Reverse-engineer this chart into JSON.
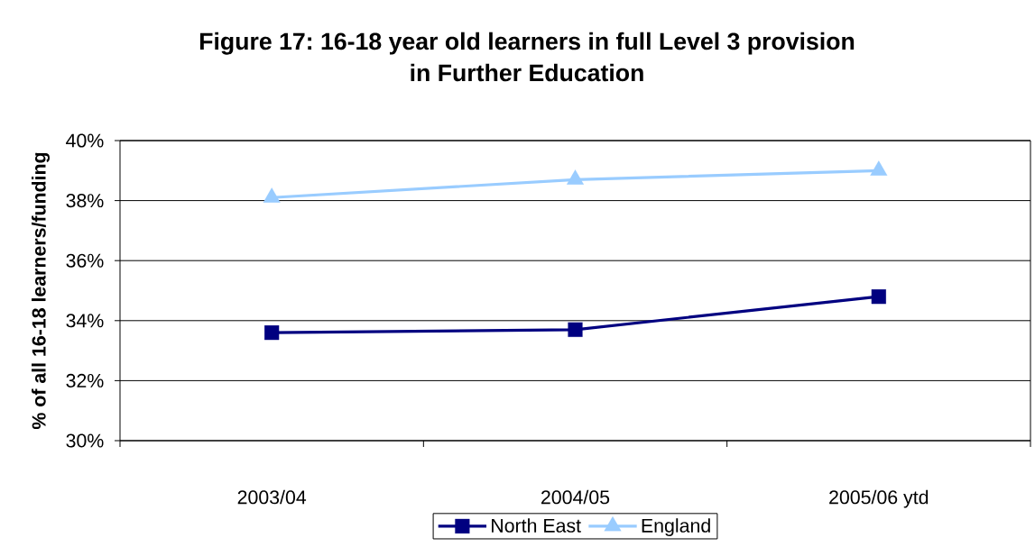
{
  "chart_data": {
    "type": "line",
    "title": "Figure 17: 16-18 year old learners in full Level 3 provision in Further Education",
    "ylabel": "% of all 16-18 learners/funding",
    "categories": [
      "2003/04",
      "2004/05",
      "2005/06 ytd"
    ],
    "series": [
      {
        "name": "North East",
        "color": "#000080",
        "marker": "square",
        "values": [
          33.6,
          33.7,
          34.8
        ]
      },
      {
        "name": "England",
        "color": "#99ccff",
        "marker": "triangle",
        "values": [
          38.1,
          38.7,
          39.0
        ]
      }
    ],
    "ylim": [
      30,
      40
    ],
    "yticks": [
      {
        "value": 30,
        "label": "30%"
      },
      {
        "value": 32,
        "label": "32%"
      },
      {
        "value": 34,
        "label": "34%"
      },
      {
        "value": 36,
        "label": "36%"
      },
      {
        "value": 38,
        "label": "38%"
      },
      {
        "value": 40,
        "label": "40%"
      }
    ],
    "grid": "y",
    "legend": "bottom",
    "line_style": "solid"
  }
}
